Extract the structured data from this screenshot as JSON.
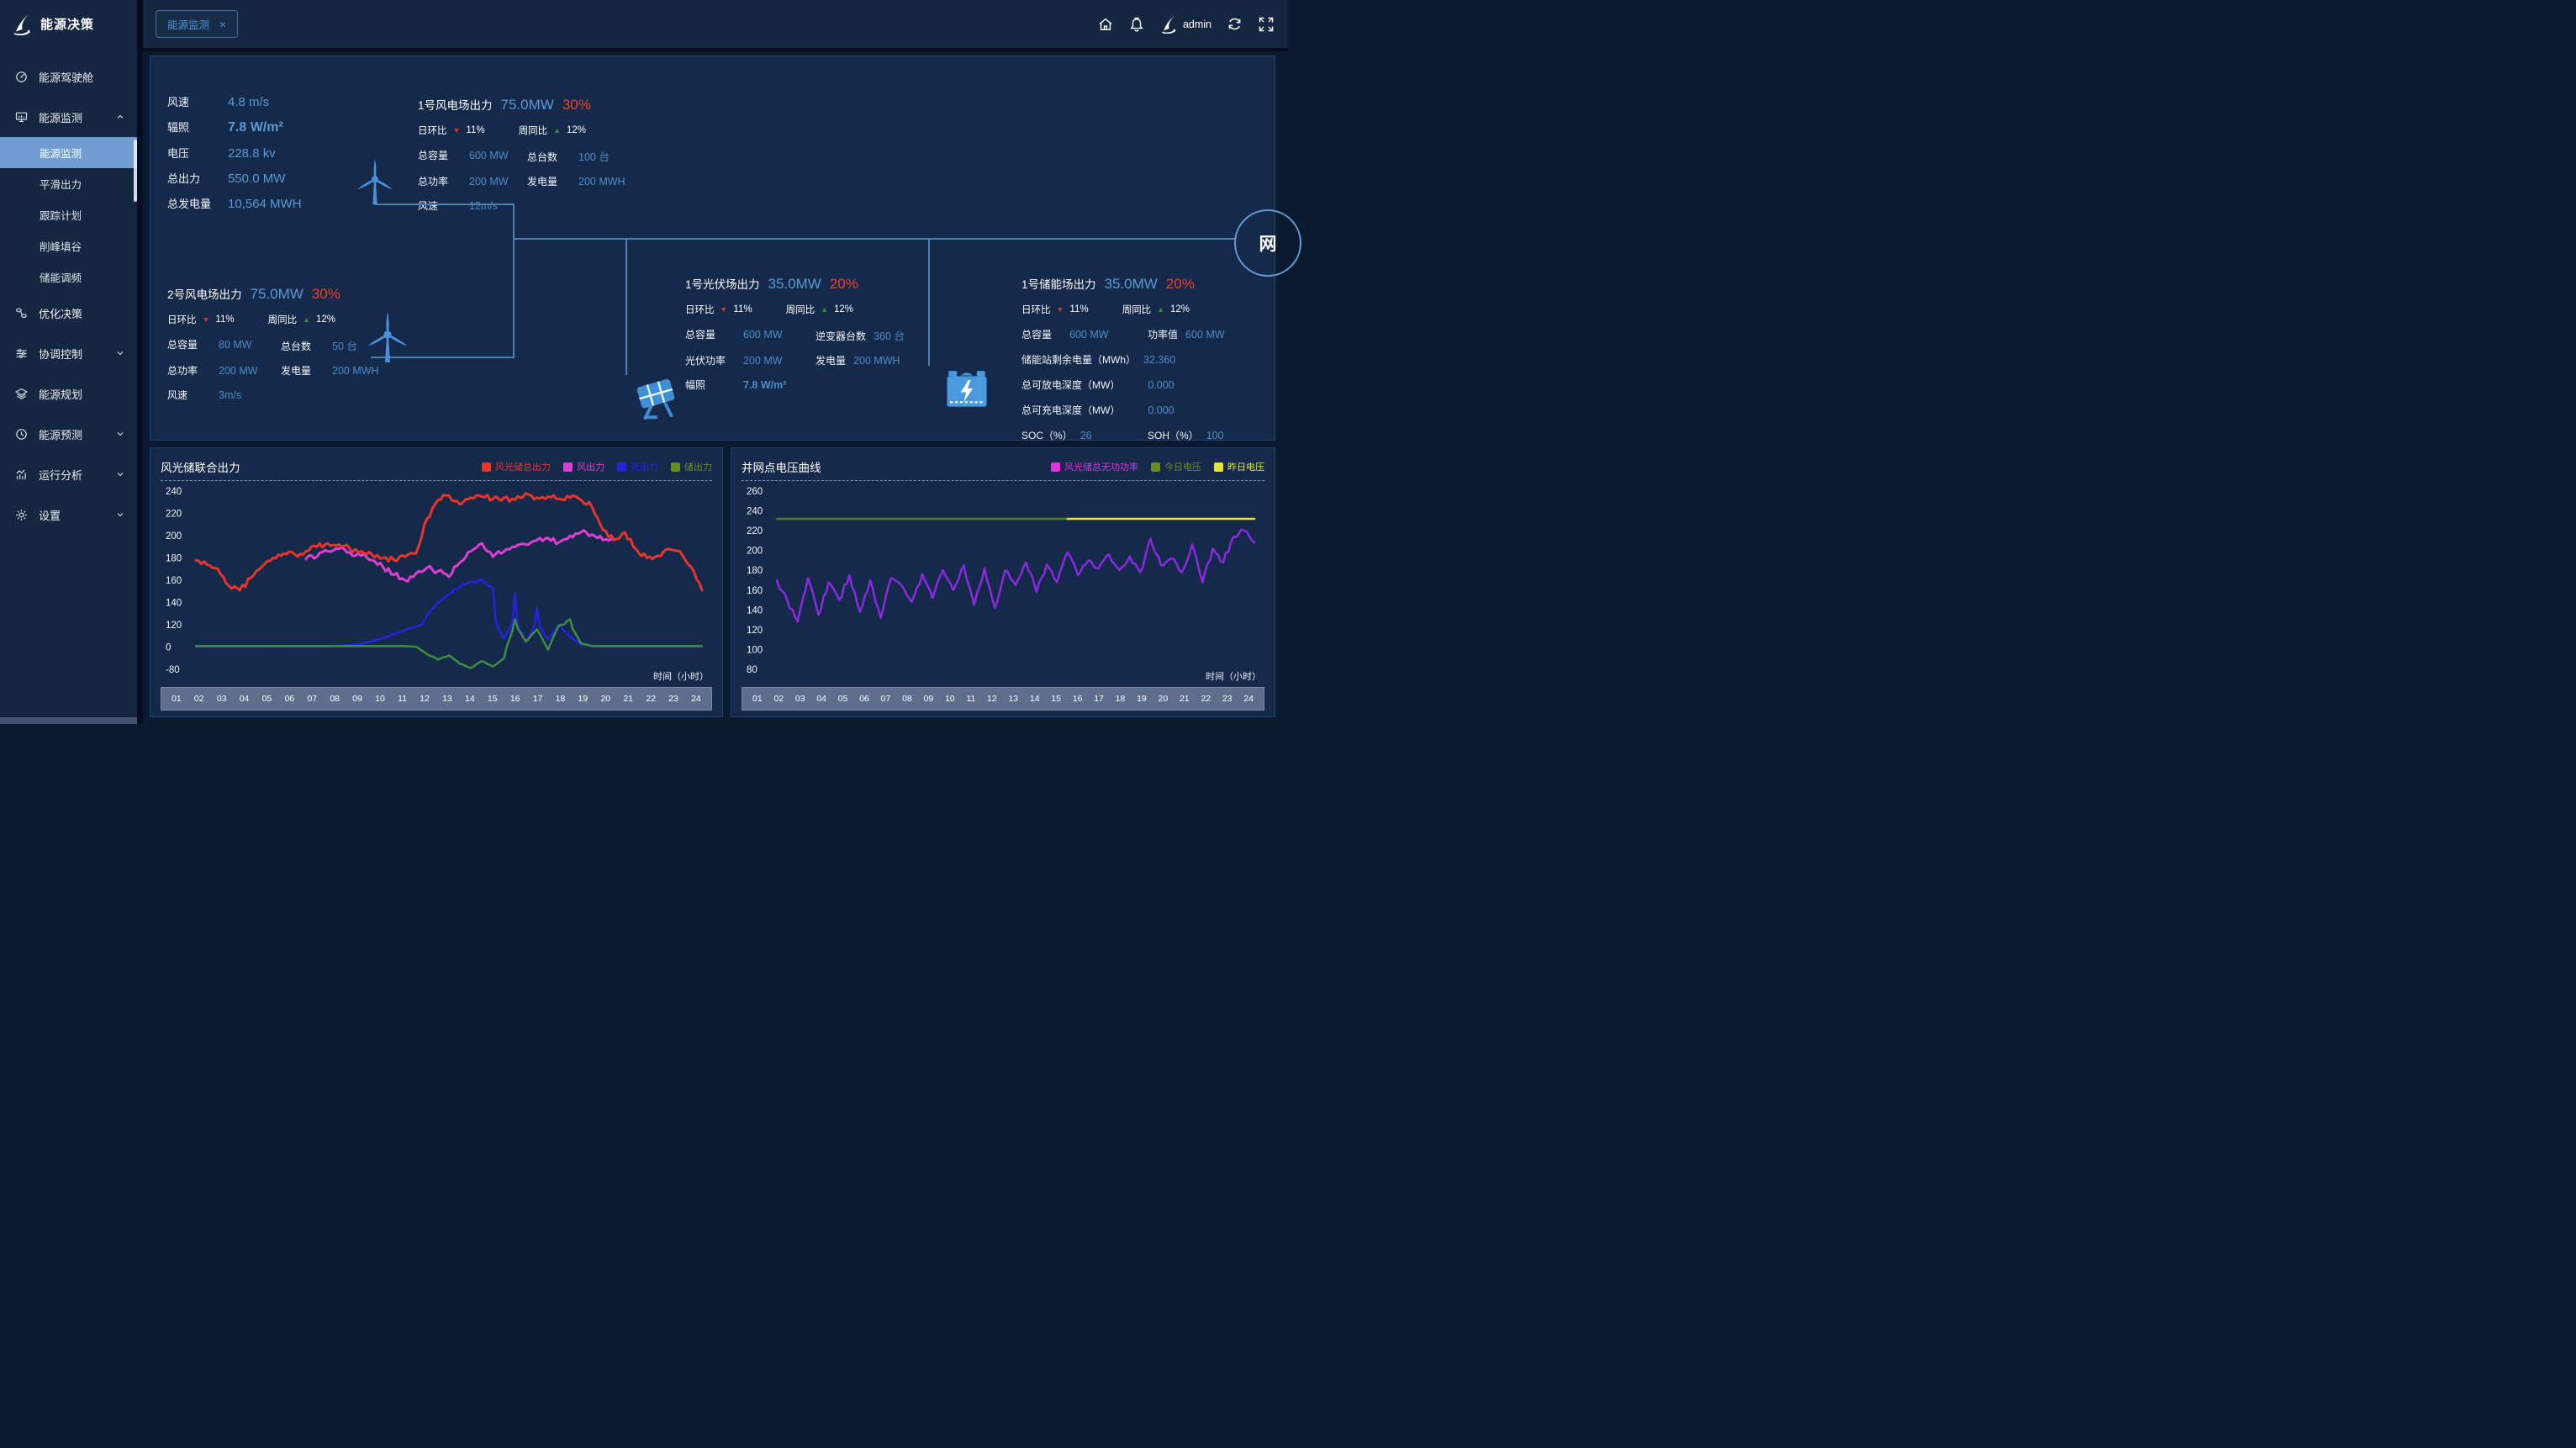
{
  "app": {
    "title": "能源决策"
  },
  "icons": {
    "down_triangle": "▼",
    "up_triangle": "▲",
    "close": "×"
  },
  "topbar": {
    "tab_label": "能源监测",
    "user": "admin"
  },
  "sidebar": {
    "items": [
      {
        "label": "能源驾驶舱"
      },
      {
        "label": "能源监测",
        "expanded": true,
        "children": [
          {
            "label": "能源监测",
            "active": true
          },
          {
            "label": "平滑出力"
          },
          {
            "label": "跟踪计划"
          },
          {
            "label": "削峰填谷"
          },
          {
            "label": "储能调频"
          }
        ]
      },
      {
        "label": "优化决策"
      },
      {
        "label": "协调控制"
      },
      {
        "label": "能源规划"
      },
      {
        "label": "能源预测"
      },
      {
        "label": "运行分析"
      },
      {
        "label": "设置"
      }
    ]
  },
  "overview": {
    "summary": {
      "rows": [
        {
          "label": "风速",
          "value": "4.8 m/s"
        },
        {
          "label": "辐照",
          "value": "7.8 W/m²"
        },
        {
          "label": "电压",
          "value": "228.8 kv"
        },
        {
          "label": "总出力",
          "value": "550.0 MW"
        },
        {
          "label": "总发电量",
          "value": "10,564 MWH"
        }
      ]
    },
    "wind1": {
      "title": "1号风电场出力",
      "output": "75.0MW",
      "pct": "30%",
      "day_label": "日环比",
      "day_value": "11%",
      "week_label": "周同比",
      "week_value": "12%",
      "cap_label": "总容量",
      "cap_value": "600 MW",
      "units_label": "总台数",
      "units_value": "100 台",
      "power_label": "总功率",
      "power_value": "200 MW",
      "gen_label": "发电量",
      "gen_value": "200 MWH",
      "speed_label": "风速",
      "speed_value": "12m/s"
    },
    "wind2": {
      "title": "2号风电场出力",
      "output": "75.0MW",
      "pct": "30%",
      "day_label": "日环比",
      "day_value": "11%",
      "week_label": "周同比",
      "week_value": "12%",
      "cap_label": "总容量",
      "cap_value": "80 MW",
      "units_label": "总台数",
      "units_value": "50 台",
      "power_label": "总功率",
      "power_value": "200 MW",
      "gen_label": "发电量",
      "gen_value": "200 MWH",
      "speed_label": "风速",
      "speed_value": "3m/s"
    },
    "pv": {
      "title": "1号光伏场出力",
      "output": "35.0MW",
      "pct": "20%",
      "day_label": "日环比",
      "day_value": "11%",
      "week_label": "周同比",
      "week_value": "12%",
      "cap_label": "总容量",
      "cap_value": "600 MW",
      "inverter_label": "逆变器台数",
      "inverter_value": "360 台",
      "power_label": "光伏功率",
      "power_value": "200 MW",
      "gen_label": "发电量",
      "gen_value": "200 MWH",
      "irr_label": "幅照",
      "irr_value": "7.8 W/m²"
    },
    "storage": {
      "title": "1号储能场出力",
      "output": "35.0MW",
      "pct": "20%",
      "day_label": "日环比",
      "day_value": "11%",
      "week_label": "周同比",
      "week_value": "12%",
      "cap_label": "总容量",
      "cap_value": "600 MW",
      "pw_label": "功率值",
      "pw_value": "600 MW",
      "rem_label": "储能站剩余电量（MWh）",
      "rem_value": "32.360",
      "dis_label": "总可放电深度（MW）",
      "dis_value": "0.000",
      "chg_label": "总可充电深度（MW）",
      "chg_value": "0.000",
      "soc_label": "SOC（%）",
      "soc_value": "26",
      "soh_label": "SOH（%）",
      "soh_value": "100"
    },
    "grid": {
      "label": "网"
    }
  },
  "chart_data": [
    {
      "type": "line",
      "title": "风光储联合出力",
      "x_label": "时间（小时）",
      "legend_position": "top-right",
      "grid": false,
      "x_labels": [
        "01",
        "02",
        "03",
        "04",
        "05",
        "06",
        "07",
        "08",
        "09",
        "10",
        "11",
        "12",
        "13",
        "14",
        "15",
        "16",
        "17",
        "18",
        "19",
        "20",
        "21",
        "22",
        "23",
        "24"
      ],
      "y_ticks": [
        -80,
        0,
        120,
        140,
        160,
        180,
        200,
        220,
        240
      ],
      "x": [
        1,
        1.5,
        2,
        2.5,
        3,
        3.5,
        4,
        4.5,
        5,
        5.5,
        6,
        6.5,
        7,
        7.5,
        8,
        8.5,
        9,
        9.5,
        10,
        10.5,
        11,
        11.5,
        12,
        12.5,
        13,
        13.5,
        14,
        14.5,
        15,
        15.5,
        16,
        16.5,
        17,
        17.5,
        18,
        18.5,
        19,
        19.5,
        20,
        20.5,
        21,
        21.5,
        22,
        22.5,
        23,
        23.5,
        24
      ],
      "draw_order": [
        2,
        3,
        1,
        0
      ],
      "series": [
        {
          "name": "风光储总出力",
          "color": "#e8352b",
          "width": 3,
          "jitter": 2.6,
          "values": [
            178,
            174,
            170,
            155,
            151,
            162,
            172,
            180,
            184,
            183,
            186,
            190,
            193,
            192,
            188,
            186,
            183,
            180,
            178,
            181,
            184,
            215,
            232,
            236,
            228,
            234,
            235,
            233,
            234,
            232,
            238,
            234,
            235,
            233,
            234,
            232,
            226,
            205,
            196,
            203,
            188,
            180,
            182,
            188,
            186,
            172,
            151
          ]
        },
        {
          "name": "风出力",
          "color": "#dd3fd3",
          "width": 3,
          "jitter": 2.6,
          "values": [
            null,
            null,
            null,
            null,
            null,
            null,
            null,
            null,
            null,
            null,
            179,
            181,
            186,
            188,
            185,
            182,
            178,
            172,
            165,
            160,
            166,
            171,
            168,
            163,
            176,
            186,
            193,
            181,
            186,
            190,
            192,
            196,
            198,
            194,
            200,
            203,
            201,
            196,
            197,
            null,
            null,
            null,
            null,
            null,
            null,
            null,
            null
          ]
        },
        {
          "name": "光出力",
          "color": "#2424e0",
          "width": 2.5,
          "jitter": 1.2,
          "calm_below": 8,
          "values": [
            3,
            3,
            3,
            3,
            3,
            3,
            3,
            3,
            3,
            3,
            3,
            3,
            4,
            6,
            10,
            18,
            30,
            48,
            70,
            92,
            112,
            128,
            140,
            148,
            154,
            158,
            160,
            152,
            45,
            148,
            25,
            135,
            40,
            118,
            55,
            15,
            6,
            3,
            3,
            3,
            3,
            3,
            3,
            3,
            3,
            3,
            3
          ]
        },
        {
          "name": "储出力",
          "color": "#3e8e41",
          "legend_color": "#6b8e23",
          "width": 2.5,
          "jitter": 1.6,
          "calm_below": 8,
          "values": [
            5,
            5,
            5,
            5,
            5,
            5,
            5,
            5,
            5,
            5,
            5,
            5,
            5,
            5,
            5,
            5,
            5,
            5,
            5,
            5,
            2,
            -25,
            -45,
            -30,
            -60,
            -75,
            -50,
            -70,
            -40,
            125,
            30,
            95,
            -10,
            118,
            125,
            20,
            5,
            5,
            5,
            5,
            5,
            5,
            5,
            5,
            5,
            5,
            5
          ]
        }
      ]
    },
    {
      "type": "line",
      "title": "并网点电压曲线",
      "x_label": "时间（小时）",
      "legend_position": "top-right",
      "grid": false,
      "x_labels": [
        "01",
        "02",
        "03",
        "04",
        "05",
        "06",
        "07",
        "08",
        "09",
        "10",
        "11",
        "12",
        "13",
        "14",
        "15",
        "16",
        "17",
        "18",
        "19",
        "20",
        "21",
        "22",
        "23",
        "24"
      ],
      "y_ticks": [
        80,
        100,
        120,
        140,
        160,
        180,
        200,
        220,
        240,
        260
      ],
      "x": [
        1,
        1.5,
        2,
        2.5,
        3,
        3.5,
        4,
        4.5,
        5,
        5.5,
        6,
        6.5,
        7,
        7.5,
        8,
        8.5,
        9,
        9.5,
        10,
        10.5,
        11,
        11.5,
        12,
        12.5,
        13,
        13.5,
        14,
        14.5,
        15,
        15.5,
        16,
        16.5,
        17,
        17.5,
        18,
        18.5,
        19,
        19.5,
        20,
        20.5,
        21,
        21.5,
        22,
        22.5,
        23,
        23.5,
        24
      ],
      "draw_order": [
        1,
        2,
        0
      ],
      "series": [
        {
          "name": "风光储总无功功率",
          "color": "#8a2ae0",
          "legend_color": "#e431e4",
          "width": 2.5,
          "jitter": 3.2,
          "values": [
            170,
            150,
            128,
            172,
            135,
            168,
            150,
            175,
            138,
            170,
            132,
            172,
            165,
            148,
            176,
            152,
            180,
            160,
            185,
            145,
            182,
            142,
            180,
            165,
            188,
            158,
            186,
            168,
            198,
            175,
            190,
            182,
            196,
            180,
            194,
            178,
            212,
            185,
            192,
            178,
            206,
            168,
            202,
            188,
            214,
            220,
            208
          ]
        },
        {
          "name": "今日电压",
          "color": "#4f7a28",
          "legend_color": "#6b8e23",
          "width": 2.5,
          "jitter": 0,
          "values": [
            232,
            232,
            232,
            232,
            232,
            232,
            232,
            232,
            232,
            232,
            232,
            232,
            232,
            232,
            232,
            232,
            232,
            232,
            232,
            232,
            232,
            232,
            232,
            232,
            232,
            232,
            232,
            232,
            232,
            null,
            null,
            null,
            null,
            null,
            null,
            null,
            null,
            null,
            null,
            null,
            null,
            null,
            null,
            null,
            null,
            null,
            null
          ]
        },
        {
          "name": "昨日电压",
          "color": "#e8e33c",
          "width": 2.5,
          "jitter": 0,
          "values": [
            null,
            null,
            null,
            null,
            null,
            null,
            null,
            null,
            null,
            null,
            null,
            null,
            null,
            null,
            null,
            null,
            null,
            null,
            null,
            null,
            null,
            null,
            null,
            null,
            null,
            null,
            null,
            null,
            232,
            232,
            232,
            232,
            232,
            232,
            232,
            232,
            232,
            232,
            232,
            232,
            232,
            232,
            232,
            232,
            232,
            232,
            232
          ]
        }
      ]
    }
  ]
}
